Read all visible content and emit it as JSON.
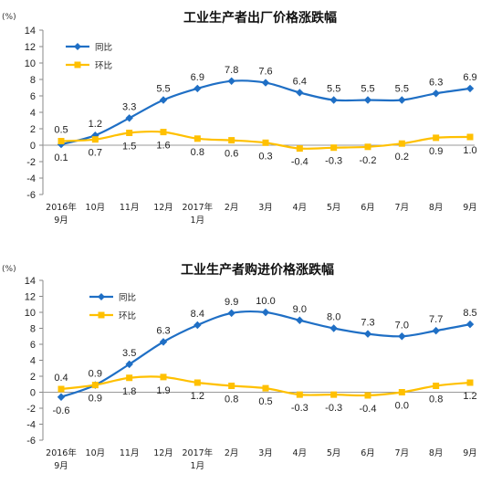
{
  "chart_data": [
    {
      "type": "line",
      "title": "工业生产者出厂价格涨跌幅",
      "unit": "(%)",
      "categories": [
        "2016年\n9月",
        "10月",
        "11月",
        "12月",
        "2017年\n1月",
        "2月",
        "3月",
        "4月",
        "5月",
        "6月",
        "7月",
        "8月",
        "9月"
      ],
      "ylim": [
        -6,
        14
      ],
      "yticks": [
        -6,
        -4,
        -2,
        0,
        2,
        4,
        6,
        8,
        10,
        12,
        14
      ],
      "series": [
        {
          "name": "同比",
          "color": "#1f6fc5",
          "values": [
            0.1,
            1.2,
            3.3,
            5.5,
            6.9,
            7.8,
            7.6,
            6.4,
            5.5,
            5.5,
            5.5,
            6.3,
            6.9
          ]
        },
        {
          "name": "环比",
          "color": "#ffc000",
          "values": [
            0.5,
            0.7,
            1.5,
            1.6,
            0.8,
            0.6,
            0.3,
            -0.4,
            -0.3,
            -0.2,
            0.2,
            0.9,
            1.0
          ]
        }
      ],
      "data_labels": {
        "同比": [
          "0.1",
          "1.2",
          "3.3",
          "5.5",
          "6.9",
          "7.8",
          "7.6",
          "6.4",
          "5.5",
          "5.5",
          "5.5",
          "6.3",
          "6.9"
        ],
        "环比": [
          "0.5",
          "0.7",
          "1.5",
          "1.6",
          "0.8",
          "0.6",
          "0.3",
          "-0.4",
          "-0.3",
          "-0.2",
          "0.2",
          "0.9",
          "1.0"
        ]
      },
      "legend": "top-left"
    },
    {
      "type": "line",
      "title": "工业生产者购进价格涨跌幅",
      "unit": "(%)",
      "categories": [
        "2016年\n9月",
        "10月",
        "11月",
        "12月",
        "2017年\n1月",
        "2月",
        "3月",
        "4月",
        "5月",
        "6月",
        "7月",
        "8月",
        "9月"
      ],
      "ylim": [
        -6,
        14
      ],
      "yticks": [
        -6,
        -4,
        -2,
        0,
        2,
        4,
        6,
        8,
        10,
        12,
        14
      ],
      "series": [
        {
          "name": "同比",
          "color": "#1f6fc5",
          "values": [
            -0.6,
            0.9,
            3.5,
            6.3,
            8.4,
            9.9,
            10.0,
            9.0,
            8.0,
            7.3,
            7.0,
            7.7,
            8.5
          ]
        },
        {
          "name": "环比",
          "color": "#ffc000",
          "values": [
            0.4,
            0.9,
            1.8,
            1.9,
            1.2,
            0.8,
            0.5,
            -0.3,
            -0.3,
            -0.4,
            0.0,
            0.8,
            1.2
          ]
        }
      ],
      "data_labels": {
        "同比": [
          "-0.6",
          "0.9",
          "3.5",
          "6.3",
          "8.4",
          "9.9",
          "10.0",
          "9.0",
          "8.0",
          "7.3",
          "7.0",
          "7.7",
          "8.5"
        ],
        "环比": [
          "0.4",
          "0.9",
          "1.8",
          "1.9",
          "1.2",
          "0.8",
          "0.5",
          "-0.3",
          "-0.3",
          "-0.4",
          "0.0",
          "0.8",
          "1.2"
        ]
      },
      "legend": "top-left"
    }
  ]
}
